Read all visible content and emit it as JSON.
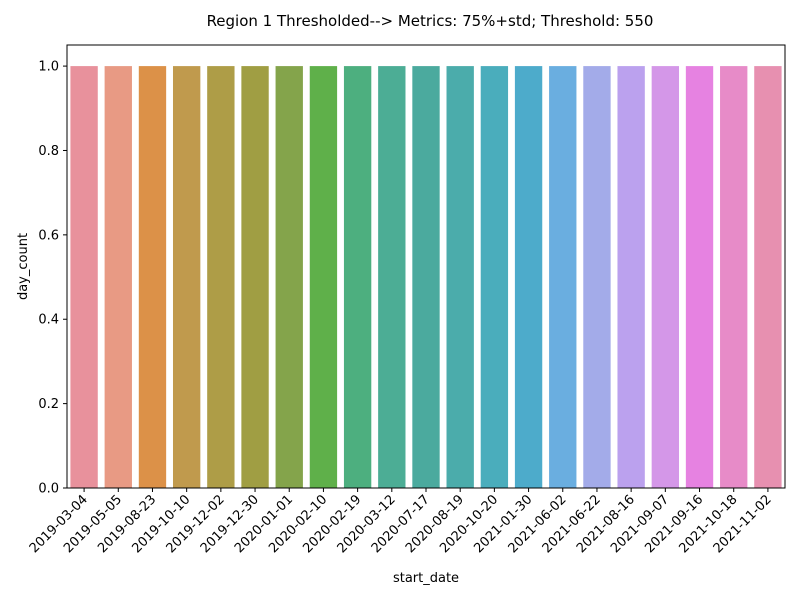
{
  "chart_data": {
    "type": "bar",
    "title": "Region 1 Thresholded--> Metrics: 75%+std; Threshold: 550",
    "xlabel": "start_date",
    "ylabel": "day_count",
    "ylim": [
      0,
      1.05
    ],
    "yticks": [
      "0.0",
      "0.2",
      "0.4",
      "0.6",
      "0.8",
      "1.0"
    ],
    "grid": false,
    "categories": [
      "2019-03-04",
      "2019-05-05",
      "2019-08-23",
      "2019-10-10",
      "2019-12-02",
      "2019-12-30",
      "2020-01-01",
      "2020-02-10",
      "2020-02-19",
      "2020-03-12",
      "2020-07-17",
      "2020-08-19",
      "2020-10-20",
      "2021-01-30",
      "2021-06-02",
      "2021-06-22",
      "2021-08-16",
      "2021-09-07",
      "2021-09-16",
      "2021-10-18",
      "2021-11-02"
    ],
    "values": [
      1,
      1,
      1,
      1,
      1,
      1,
      1,
      1,
      1,
      1,
      1,
      1,
      1,
      1,
      1,
      1,
      1,
      1,
      1,
      1,
      1
    ],
    "colors": [
      "#e8919c",
      "#e89a84",
      "#dc9148",
      "#c09a4d",
      "#ae9d47",
      "#a09e43",
      "#84a44b",
      "#5fb04a",
      "#4daf7f",
      "#4cad95",
      "#4baa9e",
      "#4bacab",
      "#4aadbc",
      "#4dabcb",
      "#6aaee0",
      "#a3abe9",
      "#bba1ee",
      "#d497e8",
      "#e682e1",
      "#e78bc8",
      "#e790b0"
    ]
  }
}
